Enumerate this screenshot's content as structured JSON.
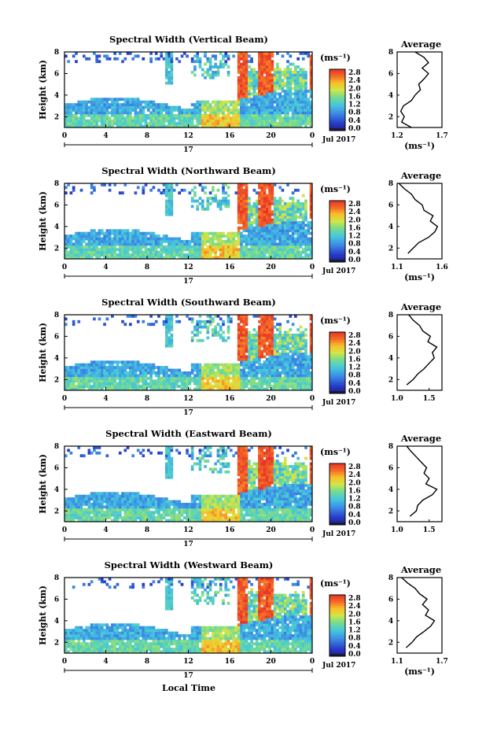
{
  "figure": {
    "common_xlabel": "Local Time",
    "time_unit_label": "Jul 2017",
    "date_tick_label": "17",
    "height_label": "Height (km)",
    "unit_label": "(ms⁻¹)",
    "avg_title": "Average"
  },
  "chart_data": [
    {
      "type": "heatmap",
      "title": "Spectral Width (Vertical Beam)",
      "xlabel": "",
      "ylabel": "Height (km)",
      "x_ticks": [
        "0",
        "4",
        "8",
        "12",
        "16",
        "20",
        "0"
      ],
      "xlim": [
        0,
        24
      ],
      "ylim": [
        1,
        8
      ],
      "y_ticks": [
        "2",
        "4",
        "6",
        "8"
      ],
      "colorbar": {
        "label": "(ms⁻¹)",
        "range": [
          0.0,
          2.8
        ],
        "ticks": [
          "2.8",
          "2.4",
          "2.0",
          "1.6",
          "1.2",
          "0.8",
          "0.4",
          "0.0"
        ]
      },
      "average_profile": {
        "title": "Average",
        "xlabel": "(ms⁻¹)",
        "x_ticks": [
          "1.2",
          "1.7"
        ],
        "xlim": [
          1.2,
          1.7
        ],
        "y_ticks": [
          "2",
          "4",
          "6",
          "8"
        ],
        "heights": [
          1.0,
          1.5,
          2.0,
          2.5,
          3.0,
          3.5,
          4.0,
          4.5,
          5.0,
          5.5,
          6.0,
          6.5,
          7.0,
          7.5,
          8.0
        ],
        "values": [
          1.36,
          1.25,
          1.28,
          1.24,
          1.27,
          1.36,
          1.4,
          1.46,
          1.44,
          1.5,
          1.55,
          1.48,
          1.55,
          1.5,
          1.4
        ]
      }
    },
    {
      "type": "heatmap",
      "title": "Spectral Width (Northward Beam)",
      "xlabel": "",
      "ylabel": "Height (km)",
      "x_ticks": [
        "0",
        "4",
        "8",
        "12",
        "16",
        "20",
        "0"
      ],
      "xlim": [
        0,
        24
      ],
      "ylim": [
        1,
        8
      ],
      "y_ticks": [
        "2",
        "4",
        "6",
        "8"
      ],
      "colorbar": {
        "label": "(ms⁻¹)",
        "range": [
          0.0,
          2.8
        ],
        "ticks": [
          "2.8",
          "2.4",
          "2.0",
          "1.6",
          "1.2",
          "0.8",
          "0.4",
          "0.0"
        ]
      },
      "average_profile": {
        "title": "Average",
        "xlabel": "(ms⁻¹)",
        "x_ticks": [
          "1.1",
          "1.6"
        ],
        "xlim": [
          1.1,
          1.6
        ],
        "y_ticks": [
          "2",
          "4",
          "6",
          "8"
        ],
        "heights": [
          1.5,
          2.0,
          2.5,
          3.0,
          3.5,
          4.0,
          4.5,
          5.0,
          5.5,
          6.0,
          6.5,
          7.0,
          7.5,
          8.0
        ],
        "values": [
          1.22,
          1.28,
          1.34,
          1.45,
          1.52,
          1.55,
          1.47,
          1.5,
          1.4,
          1.38,
          1.3,
          1.26,
          1.18,
          1.12
        ]
      }
    },
    {
      "type": "heatmap",
      "title": "Spectral Width (Southward Beam)",
      "xlabel": "",
      "ylabel": "Height (km)",
      "x_ticks": [
        "0",
        "4",
        "8",
        "12",
        "16",
        "20",
        "0"
      ],
      "xlim": [
        0,
        24
      ],
      "ylim": [
        1,
        8
      ],
      "y_ticks": [
        "2",
        "4",
        "6",
        "8"
      ],
      "colorbar": {
        "label": "(ms⁻¹)",
        "range": [
          0.0,
          2.8
        ],
        "ticks": [
          "2.8",
          "2.4",
          "2.0",
          "1.6",
          "1.2",
          "0.8",
          "0.4",
          "0.0"
        ]
      },
      "average_profile": {
        "title": "Average",
        "xlabel": "",
        "x_ticks": [
          "1.0",
          "1.5"
        ],
        "xlim": [
          1.0,
          1.7
        ],
        "y_ticks": [
          "2",
          "4",
          "6",
          "8"
        ],
        "heights": [
          1.5,
          2.0,
          2.5,
          3.0,
          3.5,
          4.0,
          4.5,
          5.0,
          5.5,
          6.0,
          6.5,
          7.0,
          7.5,
          8.0
        ],
        "values": [
          1.15,
          1.25,
          1.32,
          1.42,
          1.5,
          1.58,
          1.55,
          1.62,
          1.48,
          1.52,
          1.4,
          1.35,
          1.25,
          1.18
        ]
      }
    },
    {
      "type": "heatmap",
      "title": "Spectral Width (Eastward Beam)",
      "xlabel": "",
      "ylabel": "Height (km)",
      "x_ticks": [
        "0",
        "4",
        "8",
        "12",
        "16",
        "20",
        "0"
      ],
      "xlim": [
        0,
        24
      ],
      "ylim": [
        1,
        8
      ],
      "y_ticks": [
        "2",
        "4",
        "6",
        "8"
      ],
      "colorbar": {
        "label": "(ms⁻¹)",
        "range": [
          0.0,
          2.8
        ],
        "ticks": [
          "2.8",
          "2.4",
          "2.0",
          "1.6",
          "1.2",
          "0.8",
          "0.4",
          "0.0"
        ]
      },
      "average_profile": {
        "title": "Average",
        "xlabel": "",
        "x_ticks": [
          "1.0",
          "1.5"
        ],
        "xlim": [
          1.0,
          1.7
        ],
        "y_ticks": [
          "2",
          "4",
          "6",
          "8"
        ],
        "heights": [
          1.5,
          2.0,
          2.5,
          3.0,
          3.5,
          4.0,
          4.5,
          5.0,
          5.5,
          6.0,
          6.5,
          7.0,
          7.5,
          8.0
        ],
        "values": [
          1.2,
          1.3,
          1.32,
          1.4,
          1.55,
          1.62,
          1.45,
          1.5,
          1.42,
          1.46,
          1.38,
          1.3,
          1.22,
          1.15
        ]
      }
    },
    {
      "type": "heatmap",
      "title": "Spectral Width (Westward Beam)",
      "xlabel": "Local Time",
      "ylabel": "Height (km)",
      "x_ticks": [
        "0",
        "4",
        "8",
        "12",
        "16",
        "20",
        "0"
      ],
      "xlim": [
        0,
        24
      ],
      "ylim": [
        1,
        8
      ],
      "y_ticks": [
        "2",
        "4",
        "6",
        "8"
      ],
      "colorbar": {
        "label": "(ms⁻¹)",
        "range": [
          0.0,
          2.8
        ],
        "ticks": [
          "2.8",
          "2.4",
          "2.0",
          "1.6",
          "1.2",
          "0.8",
          "0.4",
          "0.0"
        ]
      },
      "average_profile": {
        "title": "Average",
        "xlabel": "(ms⁻¹)",
        "x_ticks": [
          "1.1",
          "1.7"
        ],
        "xlim": [
          1.1,
          1.7
        ],
        "y_ticks": [
          "2",
          "4",
          "6",
          "8"
        ],
        "heights": [
          1.5,
          2.0,
          2.5,
          3.0,
          3.5,
          4.0,
          4.5,
          5.0,
          5.5,
          6.0,
          6.5,
          7.0,
          7.5,
          8.0
        ],
        "values": [
          1.22,
          1.3,
          1.36,
          1.46,
          1.55,
          1.6,
          1.48,
          1.52,
          1.44,
          1.5,
          1.4,
          1.34,
          1.24,
          1.16
        ]
      }
    }
  ]
}
